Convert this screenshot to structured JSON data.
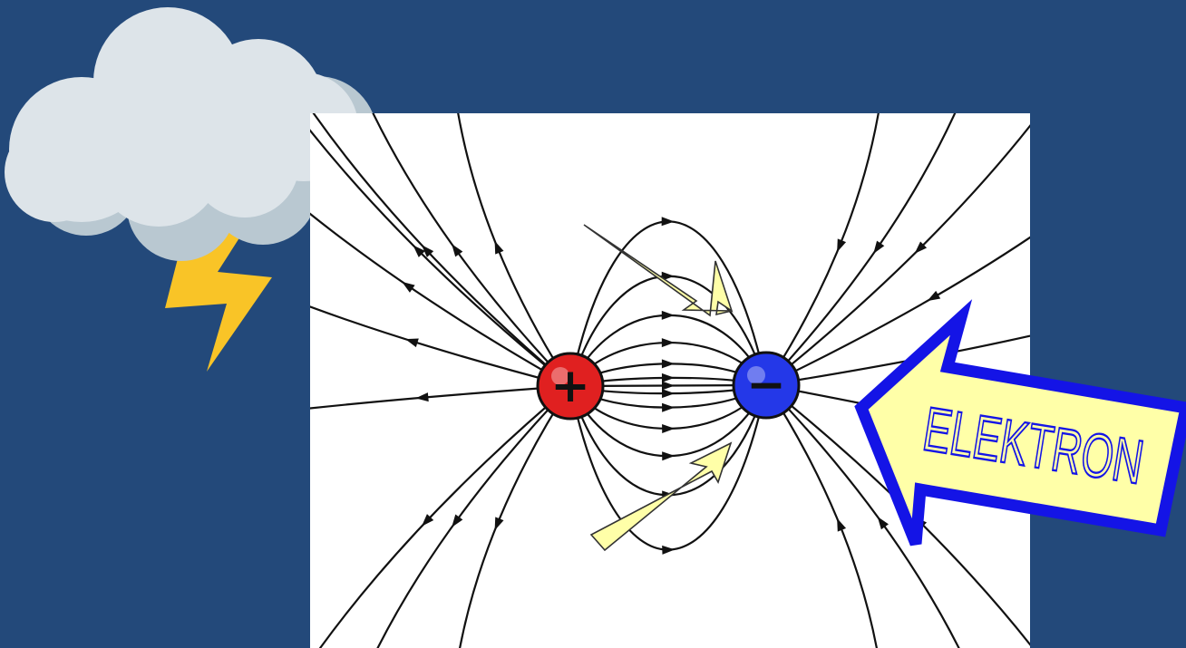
{
  "slide": {
    "background_color": "#23497a"
  },
  "weather_icon": {
    "icon": "thunderstorm-cloud-icon",
    "cloud_color": "#dde4e9",
    "cloud_shadow_color": "#b9c8d1",
    "bolt_color": "#f9c427"
  },
  "diagram": {
    "positive_charge": {
      "icon": "positive-charge-icon",
      "sign": "+",
      "color": "#e02020"
    },
    "negative_charge": {
      "icon": "negative-charge-icon",
      "sign": "−",
      "color": "#2438e8"
    },
    "field_line_color": "#111111",
    "pointer_arrow_color": "#ffffa8"
  },
  "callout": {
    "label": "ELEKTRON",
    "arrow_fill": "#ffffa8",
    "arrow_border": "#1414e6"
  }
}
